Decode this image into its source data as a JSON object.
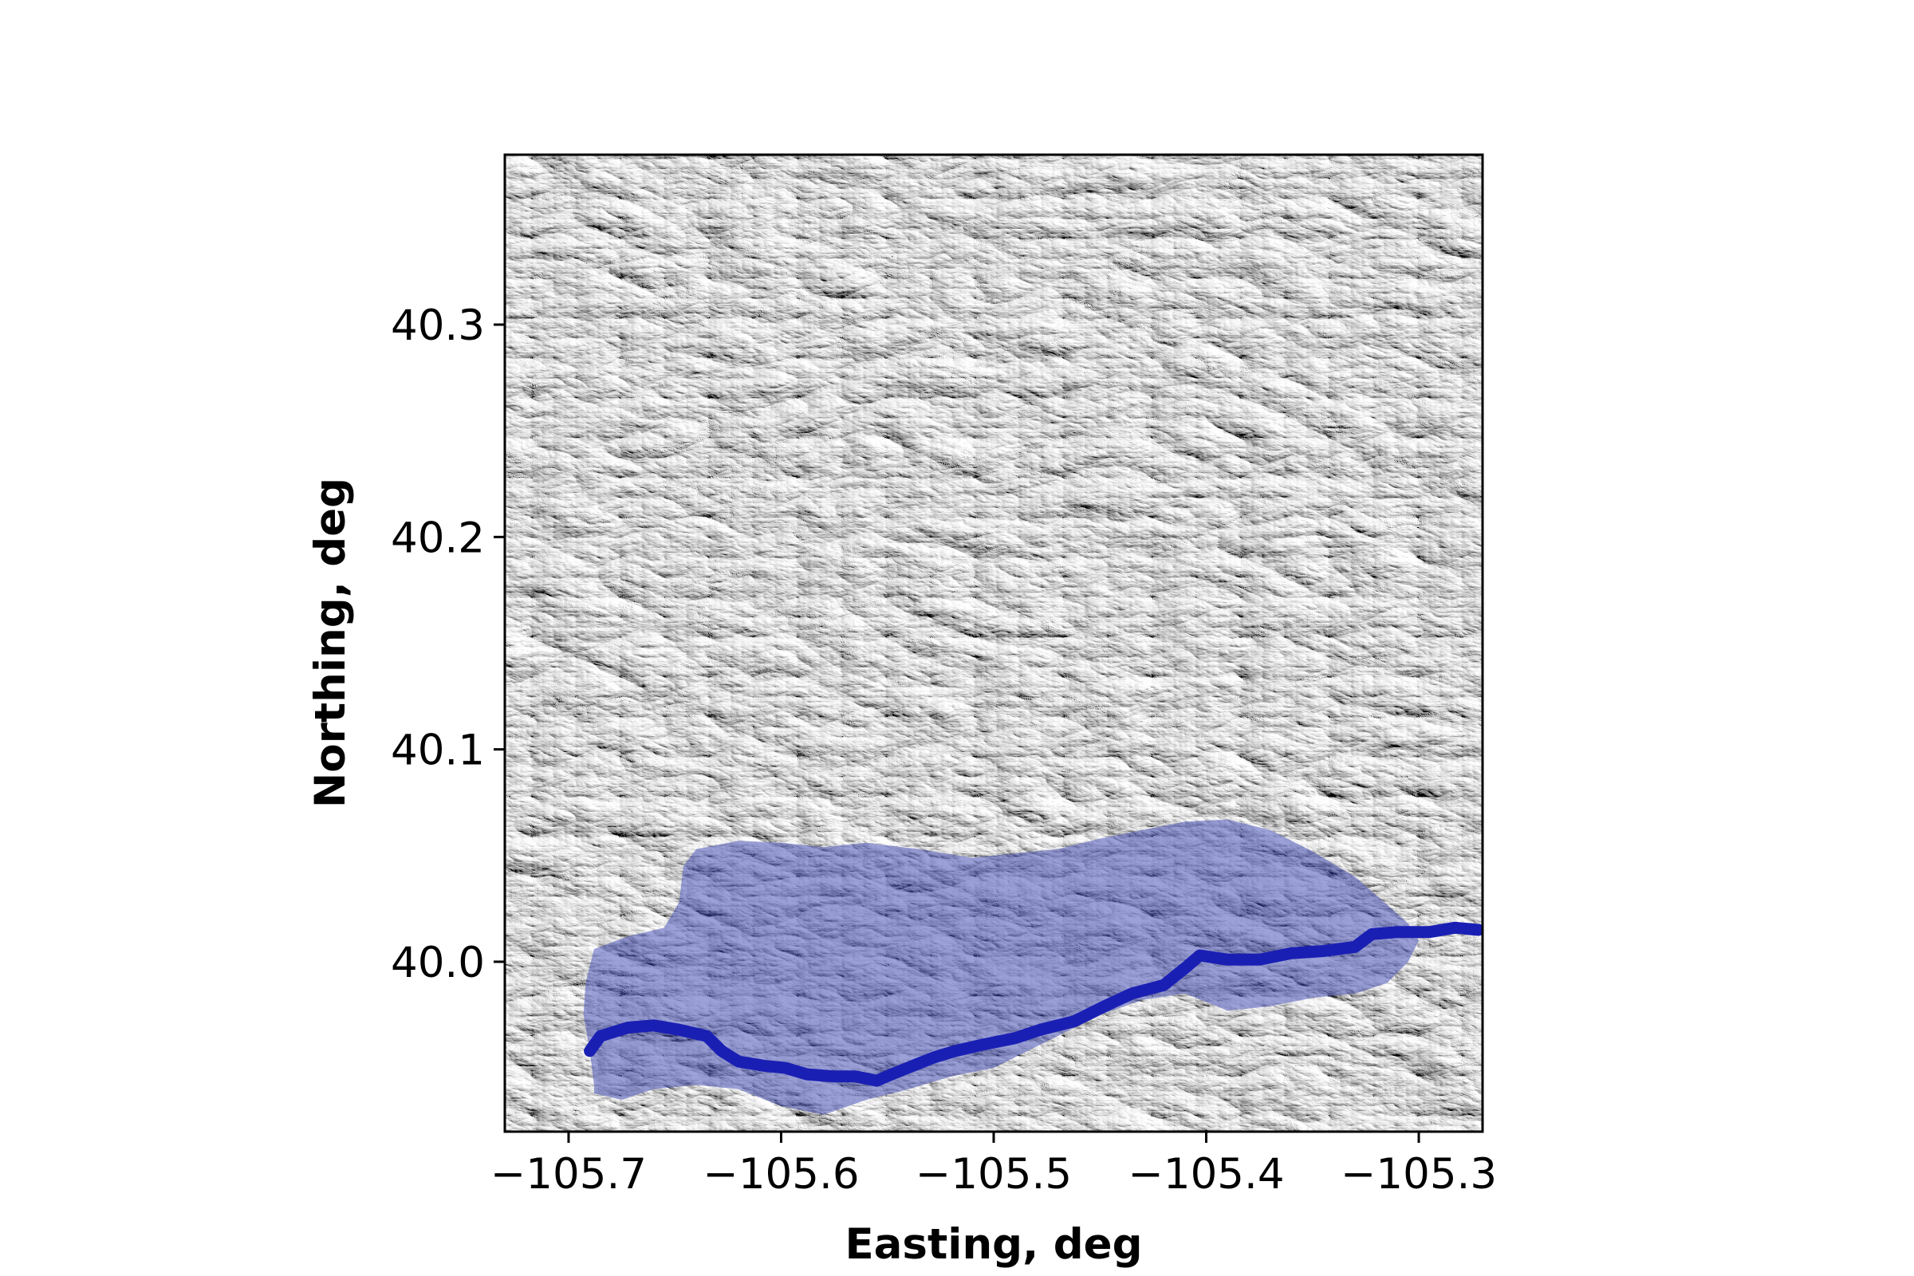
{
  "figure": {
    "xlabel": "Easting, deg",
    "ylabel": "Northing, deg"
  },
  "map": {
    "basemap": "grayscale shaded-relief hillshade",
    "x_range": [
      -105.73,
      -105.27
    ],
    "y_range": [
      39.92,
      40.38
    ],
    "xticks": [
      {
        "value": -105.7,
        "label": "−105.7"
      },
      {
        "value": -105.6,
        "label": "−105.6"
      },
      {
        "value": -105.5,
        "label": "−105.5"
      },
      {
        "value": -105.4,
        "label": "−105.4"
      },
      {
        "value": -105.3,
        "label": "−105.3"
      }
    ],
    "yticks": [
      {
        "value": 40.0,
        "label": "40.0"
      },
      {
        "value": 40.1,
        "label": "40.1"
      },
      {
        "value": 40.2,
        "label": "40.2"
      },
      {
        "value": 40.3,
        "label": "40.3"
      }
    ],
    "colors": {
      "watershed_fill": "#3c46b4",
      "watershed_opacity": 0.5,
      "river": "#1a1fb4"
    },
    "watershed": [
      [
        -105.688,
        39.942
      ],
      [
        -105.69,
        39.958
      ],
      [
        -105.693,
        39.975
      ],
      [
        -105.692,
        39.99
      ],
      [
        -105.688,
        40.006
      ],
      [
        -105.672,
        40.012
      ],
      [
        -105.655,
        40.016
      ],
      [
        -105.648,
        40.028
      ],
      [
        -105.646,
        40.045
      ],
      [
        -105.64,
        40.053
      ],
      [
        -105.62,
        40.057
      ],
      [
        -105.6,
        40.056
      ],
      [
        -105.58,
        40.054
      ],
      [
        -105.56,
        40.056
      ],
      [
        -105.535,
        40.053
      ],
      [
        -105.51,
        40.049
      ],
      [
        -105.49,
        40.051
      ],
      [
        -105.47,
        40.053
      ],
      [
        -105.45,
        40.058
      ],
      [
        -105.43,
        40.062
      ],
      [
        -105.41,
        40.066
      ],
      [
        -105.39,
        40.067
      ],
      [
        -105.37,
        40.062
      ],
      [
        -105.35,
        40.052
      ],
      [
        -105.33,
        40.04
      ],
      [
        -105.315,
        40.027
      ],
      [
        -105.305,
        40.018
      ],
      [
        -105.3,
        40.01
      ],
      [
        -105.305,
        40.0
      ],
      [
        -105.315,
        39.99
      ],
      [
        -105.33,
        39.985
      ],
      [
        -105.35,
        39.983
      ],
      [
        -105.37,
        39.979
      ],
      [
        -105.39,
        39.977
      ],
      [
        -105.41,
        39.985
      ],
      [
        -105.43,
        39.982
      ],
      [
        -105.45,
        39.975
      ],
      [
        -105.47,
        39.965
      ],
      [
        -105.49,
        39.955
      ],
      [
        -105.5,
        39.95
      ],
      [
        -105.52,
        39.946
      ],
      [
        -105.54,
        39.94
      ],
      [
        -105.56,
        39.935
      ],
      [
        -105.58,
        39.928
      ],
      [
        -105.6,
        39.932
      ],
      [
        -105.62,
        39.94
      ],
      [
        -105.64,
        39.942
      ],
      [
        -105.66,
        39.94
      ],
      [
        -105.675,
        39.935
      ],
      [
        -105.688,
        39.938
      ]
    ],
    "river": [
      [
        -105.69,
        39.958
      ],
      [
        -105.685,
        39.965
      ],
      [
        -105.672,
        39.969
      ],
      [
        -105.66,
        39.97
      ],
      [
        -105.648,
        39.968
      ],
      [
        -105.635,
        39.965
      ],
      [
        -105.628,
        39.958
      ],
      [
        -105.62,
        39.953
      ],
      [
        -105.608,
        39.951
      ],
      [
        -105.598,
        39.95
      ],
      [
        -105.588,
        39.947
      ],
      [
        -105.575,
        39.946
      ],
      [
        -105.565,
        39.946
      ],
      [
        -105.555,
        39.944
      ],
      [
        -105.548,
        39.947
      ],
      [
        -105.538,
        39.951
      ],
      [
        -105.528,
        39.955
      ],
      [
        -105.518,
        39.958
      ],
      [
        -105.505,
        39.961
      ],
      [
        -105.49,
        39.964
      ],
      [
        -105.478,
        39.968
      ],
      [
        -105.462,
        39.972
      ],
      [
        -105.448,
        39.979
      ],
      [
        -105.435,
        39.985
      ],
      [
        -105.42,
        39.989
      ],
      [
        -105.41,
        39.997
      ],
      [
        -105.403,
        40.003
      ],
      [
        -105.39,
        40.001
      ],
      [
        -105.375,
        40.001
      ],
      [
        -105.36,
        40.004
      ],
      [
        -105.345,
        40.005
      ],
      [
        -105.33,
        40.007
      ],
      [
        -105.322,
        40.013
      ],
      [
        -105.31,
        40.014
      ],
      [
        -105.295,
        40.014
      ],
      [
        -105.283,
        40.016
      ],
      [
        -105.272,
        40.015
      ]
    ]
  }
}
